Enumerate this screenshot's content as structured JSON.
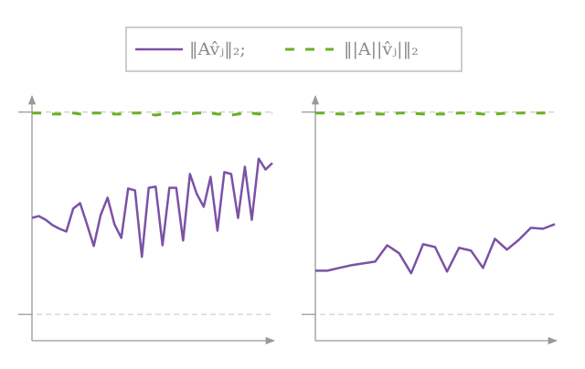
{
  "chart_data": [
    {
      "type": "line",
      "ylim": [
        -0.13,
        1.08
      ],
      "yticks": [
        0,
        1
      ],
      "grid": true,
      "series": [
        {
          "name": "‖Av̂ⱼ‖₂;",
          "color": "#7b52a6",
          "style": "solid",
          "values": [
            0.477,
            0.486,
            0.468,
            0.441,
            0.423,
            0.41,
            0.523,
            0.55,
            0.446,
            0.338,
            0.491,
            0.577,
            0.446,
            0.378,
            0.622,
            0.613,
            0.284,
            0.626,
            0.631,
            0.342,
            0.626,
            0.626,
            0.365,
            0.694,
            0.595,
            0.532,
            0.68,
            0.414,
            0.703,
            0.694,
            0.477,
            0.73,
            0.468,
            0.77,
            0.716,
            0.748
          ]
        },
        {
          "name": "‖|A||v̂ⱼ|‖₂",
          "color": "#6ab023",
          "style": "dashed",
          "values": [
            0.995,
            0.995,
            0.99,
            0.99,
            0.99,
            0.995,
            0.995,
            0.99,
            0.99,
            0.995,
            0.995,
            0.995,
            0.99,
            0.99,
            0.995,
            0.995,
            0.995,
            0.99,
            0.985,
            0.99,
            0.99,
            0.995,
            0.995,
            0.99,
            0.995,
            0.995,
            0.995,
            0.99,
            0.99,
            0.985,
            0.99,
            0.995,
            0.995,
            0.99,
            0.995,
            0.995
          ]
        }
      ]
    },
    {
      "type": "line",
      "ylim": [
        -0.13,
        1.08
      ],
      "yticks": [
        0,
        1
      ],
      "grid": true,
      "series": [
        {
          "color": "#7b52a6",
          "style": "solid",
          "values": [
            0.216,
            0.216,
            0.23,
            0.243,
            0.252,
            0.261,
            0.342,
            0.302,
            0.203,
            0.347,
            0.333,
            0.212,
            0.329,
            0.315,
            0.23,
            0.374,
            0.32,
            0.369,
            0.428,
            0.423,
            0.446
          ]
        },
        {
          "color": "#6ab023",
          "style": "dashed",
          "values": [
            0.995,
            0.995,
            0.99,
            0.99,
            0.995,
            0.99,
            0.99,
            0.995,
            0.995,
            0.99,
            0.99,
            0.99,
            0.995,
            0.995,
            0.99,
            0.99,
            0.995,
            0.995,
            0.995,
            0.995,
            0.995
          ]
        }
      ]
    }
  ]
}
